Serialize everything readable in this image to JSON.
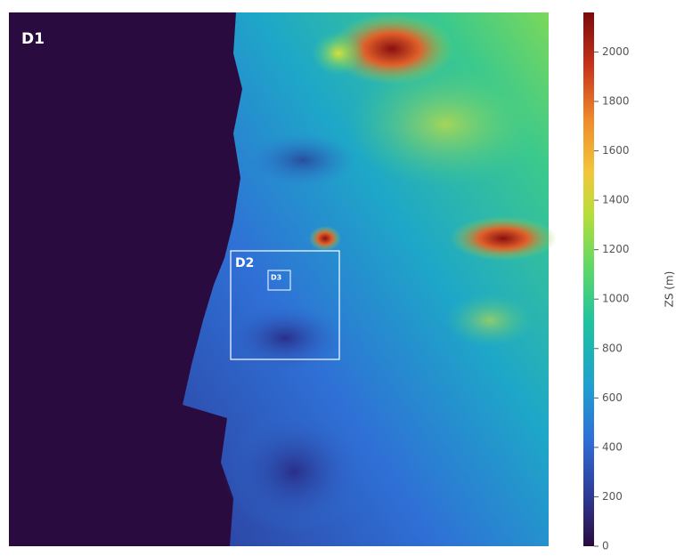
{
  "map": {
    "labels": [
      "D1",
      "D2",
      "D3"
    ]
  },
  "colorbar": {
    "label": "ZS (m)",
    "lim": [
      0,
      2160
    ],
    "ticks": [
      0,
      200,
      400,
      600,
      800,
      1000,
      1200,
      1400,
      1600,
      1800,
      2000
    ]
  }
}
